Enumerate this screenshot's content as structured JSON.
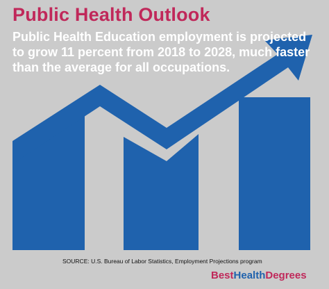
{
  "title": "Public Health Outlook",
  "headline": "Public Health Education employment is projected to grow 11 percent from 2018 to 2028, much faster than the average for all occupations.",
  "source": "SOURCE: U.S. Bureau of Labor Statistics, Employment Projections program",
  "brand": {
    "part1": "Best",
    "part2": "Health",
    "part3": "Degrees"
  },
  "colors": {
    "background": "#cbcbcb",
    "title": "#c0285a",
    "bars": "#1f62ad",
    "brand_best": "#c0285a",
    "brand_health": "#1f62ad",
    "brand_degrees": "#c0285a"
  },
  "icons": {
    "chart": "trend-up-arrow-bar-chart"
  }
}
